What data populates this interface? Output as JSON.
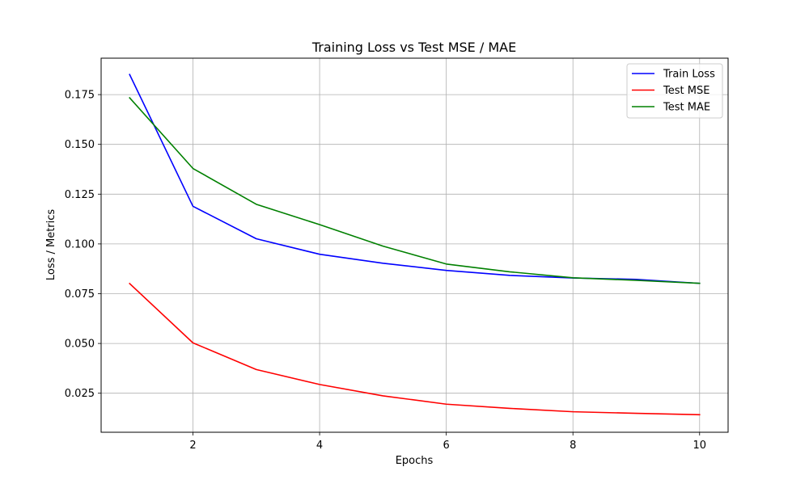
{
  "chart_data": {
    "type": "line",
    "title": "Training Loss vs Test MSE / MAE",
    "xlabel": "Epochs",
    "ylabel": "Loss / Metrics",
    "x": [
      1,
      2,
      3,
      4,
      5,
      6,
      7,
      8,
      9,
      10
    ],
    "xlim": [
      0.55,
      10.45
    ],
    "ylim": [
      0.0054,
      0.1933
    ],
    "xticks": [
      2,
      4,
      6,
      8,
      10
    ],
    "xtick_labels": [
      "2",
      "4",
      "6",
      "8",
      "10"
    ],
    "yticks": [
      0.025,
      0.05,
      0.075,
      0.1,
      0.125,
      0.15,
      0.175
    ],
    "ytick_labels": [
      "0.025",
      "0.050",
      "0.075",
      "0.100",
      "0.125",
      "0.150",
      "0.175"
    ],
    "grid": true,
    "legend_position": "top-right",
    "series": [
      {
        "name": "Train Loss",
        "color": "#0000ff",
        "values": [
          0.1851,
          0.1189,
          0.1026,
          0.0948,
          0.0903,
          0.0867,
          0.0842,
          0.0829,
          0.0822,
          0.0802
        ]
      },
      {
        "name": "Test MSE",
        "color": "#ff0000",
        "values": [
          0.0801,
          0.0503,
          0.0369,
          0.0294,
          0.0237,
          0.0195,
          0.0174,
          0.0157,
          0.0149,
          0.0142
        ]
      },
      {
        "name": "Test MAE",
        "color": "#008000",
        "values": [
          0.1734,
          0.1379,
          0.1199,
          0.1097,
          0.0989,
          0.0899,
          0.086,
          0.083,
          0.0817,
          0.0802
        ]
      }
    ]
  }
}
